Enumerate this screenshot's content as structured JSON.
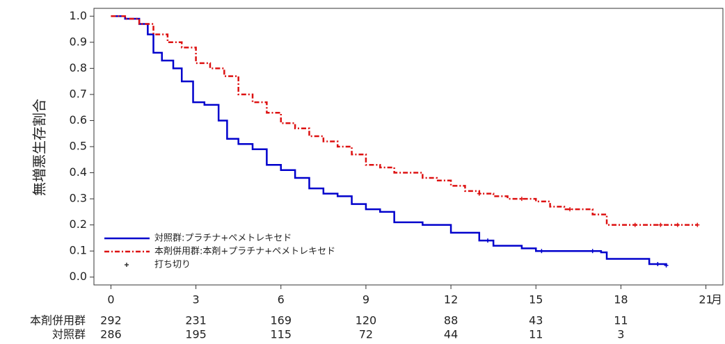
{
  "chart_data": {
    "type": "km-step",
    "y_label": "無増悪生存割合",
    "x_unit": "月",
    "xlim": [
      -0.6,
      21.6
    ],
    "ylim": [
      -0.03,
      1.03
    ],
    "xticks": [
      0,
      3,
      6,
      9,
      12,
      15,
      18,
      21
    ],
    "yticks": [
      {
        "value": 0.0,
        "label": "0.0"
      },
      0.1,
      0.2,
      0.3,
      0.4,
      0.5,
      0.6,
      0.7,
      0.8,
      0.9,
      {
        "value": 1.0,
        "label": "1.0"
      }
    ],
    "censor_label": "打ち切り",
    "series": [
      {
        "name": "対照群:プラチナ+ペメトレキセド",
        "color": "#0000cc",
        "dash": "solid",
        "x": [
          0,
          0.5,
          1,
          1.3,
          1.5,
          1.8,
          2.2,
          2.5,
          2.9,
          3.3,
          3.8,
          4.1,
          4.5,
          5,
          5.5,
          6,
          6.5,
          7,
          7.5,
          8,
          8.5,
          9,
          9.5,
          10,
          11,
          12,
          13,
          13.5,
          14.5,
          15,
          17.3,
          17.5,
          19,
          19.6
        ],
        "values": [
          1.0,
          0.99,
          0.97,
          0.93,
          0.86,
          0.83,
          0.8,
          0.75,
          0.67,
          0.66,
          0.6,
          0.53,
          0.51,
          0.49,
          0.43,
          0.41,
          0.38,
          0.34,
          0.32,
          0.31,
          0.28,
          0.26,
          0.25,
          0.21,
          0.2,
          0.17,
          0.14,
          0.12,
          0.11,
          0.1,
          0.095,
          0.07,
          0.05,
          0.045
        ],
        "censored": [
          13.3,
          15.2,
          17.0,
          19.3,
          19.6
        ]
      },
      {
        "name": "本剤併用群:本剤+プラチナ+ペメトレキセド",
        "color": "#dd1111",
        "dash": "dashdot",
        "x": [
          0,
          0.5,
          1,
          1.5,
          2,
          2.5,
          3,
          3.5,
          4,
          4.5,
          5,
          5.5,
          6,
          6.5,
          7,
          7.5,
          8,
          8.5,
          9,
          9.5,
          10,
          11,
          11.5,
          12,
          12.5,
          13,
          13.5,
          14,
          15,
          15.5,
          16,
          17,
          17.5,
          20.7
        ],
        "values": [
          1.0,
          0.99,
          0.97,
          0.93,
          0.9,
          0.88,
          0.82,
          0.8,
          0.77,
          0.7,
          0.67,
          0.63,
          0.59,
          0.57,
          0.54,
          0.52,
          0.5,
          0.47,
          0.43,
          0.42,
          0.4,
          0.38,
          0.37,
          0.35,
          0.33,
          0.32,
          0.31,
          0.3,
          0.29,
          0.27,
          0.26,
          0.24,
          0.2,
          0.2
        ],
        "censored": [
          13.0,
          14.5,
          16.2,
          18.5,
          19.4,
          20.0,
          20.7
        ]
      }
    ],
    "risk_table": [
      {
        "label": "本剤併用群",
        "values": [
          292,
          231,
          169,
          120,
          88,
          43,
          11
        ]
      },
      {
        "label": "対照群",
        "values": [
          286,
          195,
          115,
          72,
          44,
          11,
          3
        ]
      }
    ]
  }
}
